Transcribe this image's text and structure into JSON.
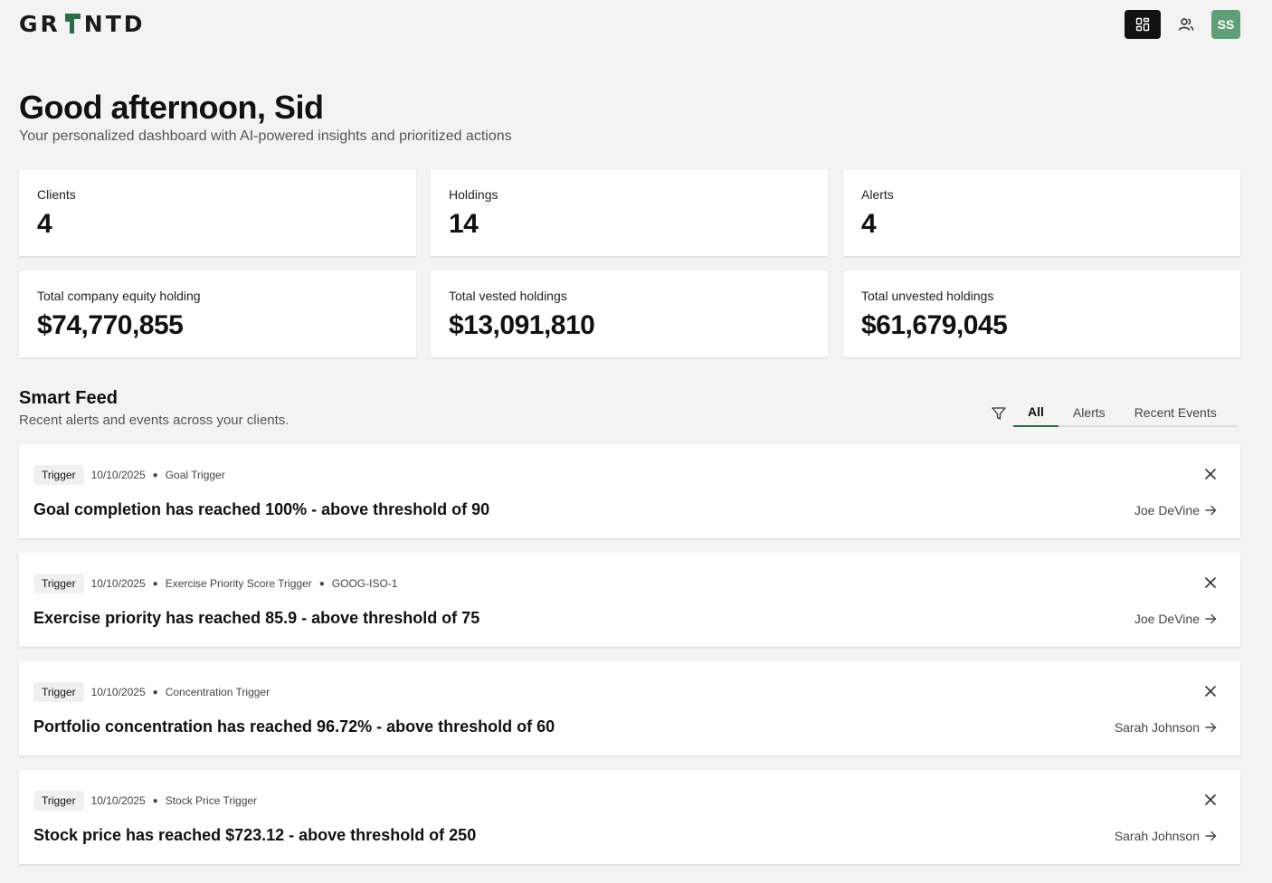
{
  "header": {
    "logo_text_left": "GR",
    "logo_text_right": "NTD",
    "user_initials": "SS",
    "colors": {
      "active_nav": "#111111",
      "avatar": "#5f9e78",
      "brand_green": "#2f6b47"
    }
  },
  "greeting": {
    "title": "Good afternoon, Sid",
    "subtitle": "Your personalized dashboard with AI-powered insights and prioritized actions"
  },
  "stats": [
    {
      "label": "Clients",
      "value": "4"
    },
    {
      "label": "Holdings",
      "value": "14"
    },
    {
      "label": "Alerts",
      "value": "4"
    },
    {
      "label": "Total company equity holding",
      "value": "$74,770,855"
    },
    {
      "label": "Total vested holdings",
      "value": "$13,091,810"
    },
    {
      "label": "Total unvested holdings",
      "value": "$61,679,045"
    }
  ],
  "feed": {
    "title": "Smart Feed",
    "subtitle": "Recent alerts and events across your clients.",
    "tabs": [
      {
        "label": "All",
        "active": true
      },
      {
        "label": "Alerts",
        "active": false
      },
      {
        "label": "Recent Events",
        "active": false
      }
    ],
    "items": [
      {
        "badge": "Trigger",
        "date": "10/10/2025",
        "type": "Goal Trigger",
        "extra": "",
        "text": "Goal completion has reached 100% - above threshold of 90",
        "client": "Joe DeVine"
      },
      {
        "badge": "Trigger",
        "date": "10/10/2025",
        "type": "Exercise Priority Score Trigger",
        "extra": "GOOG-ISO-1",
        "text": "Exercise priority has reached 85.9 - above threshold of 75",
        "client": "Joe DeVine"
      },
      {
        "badge": "Trigger",
        "date": "10/10/2025",
        "type": "Concentration Trigger",
        "extra": "",
        "text": "Portfolio concentration has reached 96.72% - above threshold of 60",
        "client": "Sarah Johnson"
      },
      {
        "badge": "Trigger",
        "date": "10/10/2025",
        "type": "Stock Price Trigger",
        "extra": "",
        "text": "Stock price has reached $723.12 - above threshold of 250",
        "client": "Sarah Johnson"
      }
    ]
  }
}
